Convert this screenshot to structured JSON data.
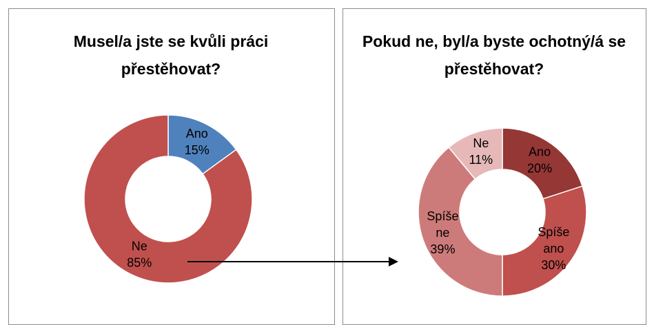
{
  "chart_data": [
    {
      "type": "donut",
      "title": "Musel/a jste se kvůli práci přestěhovat?",
      "categories": [
        "Ano",
        "Ne"
      ],
      "values": [
        15,
        85
      ],
      "value_labels": [
        "15%",
        "85%"
      ],
      "colors": [
        "#4f81bd",
        "#c0504d"
      ]
    },
    {
      "type": "donut",
      "title": "Pokud ne, byl/a byste ochotný/á se přestěhovat?",
      "categories": [
        "Ano",
        "Spíše ano",
        "Spíše ne",
        "Ne"
      ],
      "values": [
        20,
        30,
        39,
        11
      ],
      "value_labels": [
        "20%",
        "30%",
        "39%",
        "11%"
      ],
      "colors": [
        "#953735",
        "#c0504d",
        "#cd7b7a",
        "#e6b9b8"
      ]
    }
  ]
}
